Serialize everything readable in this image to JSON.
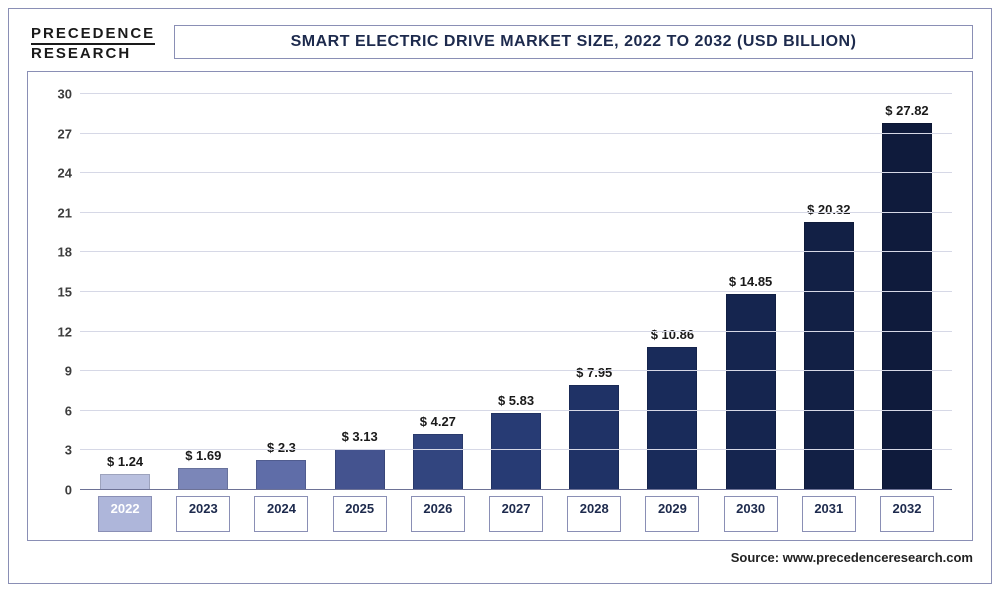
{
  "logo": {
    "line1": "PRECEDENCE",
    "line2": "RESEARCH"
  },
  "title": "SMART ELECTRIC DRIVE MARKET SIZE, 2022 TO 2032 (USD BILLION)",
  "source": "Source: www.precedenceresearch.com",
  "chart": {
    "type": "bar",
    "ylim": [
      0,
      30
    ],
    "ytick_step": 3,
    "yticks": [
      0,
      3,
      6,
      9,
      12,
      15,
      18,
      21,
      24,
      27,
      30
    ],
    "grid_color": "#d6d8e6",
    "axis_color": "#6d7296",
    "background_color": "#ffffff",
    "value_prefix": "$ ",
    "value_fontsize": 13,
    "label_fontsize": 13,
    "title_fontsize": 15,
    "bar_width_pct": 64,
    "categories": [
      "2022",
      "2023",
      "2024",
      "2025",
      "2026",
      "2027",
      "2028",
      "2029",
      "2030",
      "2031",
      "2032"
    ],
    "values": [
      1.24,
      1.69,
      2.3,
      3.13,
      4.27,
      5.83,
      7.95,
      10.86,
      14.85,
      20.32,
      27.82
    ],
    "bar_colors": [
      "#b9c0df",
      "#7b86b8",
      "#5f6da8",
      "#44538f",
      "#32457f",
      "#273b74",
      "#1f3266",
      "#192b5a",
      "#15254f",
      "#122045",
      "#0f1b3c"
    ],
    "highlight_first_label": true,
    "highlight_label_bg": "#aeb6da",
    "highlight_label_color": "#ffffff"
  }
}
